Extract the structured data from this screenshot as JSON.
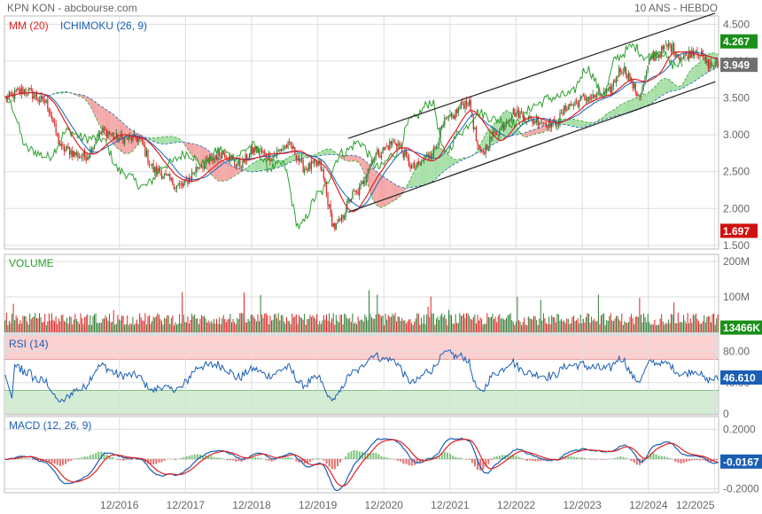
{
  "header": {
    "left": "KPN KON - abcbourse.com",
    "right": "10 ANS - HEBDO"
  },
  "colors": {
    "grid": "#dddddd",
    "axis": "#bbbbbb",
    "up": "#2e7d32",
    "down": "#e02020",
    "ma": "#e02020",
    "ichimoku": "#1a5fb4",
    "chikou": "#2ca02c",
    "cloudBull": "#a6dfa6",
    "cloudBear": "#f4a6a6",
    "badgeGreen": "#1a8f1a",
    "badgeGray": "#707070",
    "badgeRed": "#d01010",
    "badgeBlue": "#1a5fb4",
    "rsiHigh": "#fbd0d0",
    "rsiLow": "#d3ecd3",
    "macdSignal": "#e02020"
  },
  "chart_data": [
    {
      "type": "candlestick",
      "panel": "price",
      "legend": [
        {
          "name": "MM (20)",
          "color": "#e02020"
        },
        {
          "name": "ICHIMOKU (26, 9)",
          "color": "#1a5fb4"
        }
      ],
      "x_ticks": [
        "12/2016",
        "12/2017",
        "12/2018",
        "12/2019",
        "12/2020",
        "12/2021",
        "12/2022",
        "12/2023",
        "12/2024",
        "12/2025"
      ],
      "y_ticks": [
        "4.500",
        "4.000",
        "3.500",
        "3.000",
        "2.500",
        "2.000",
        "1.500"
      ],
      "ylim": [
        1.5,
        4.5
      ],
      "anchors": [
        {
          "x": 2015.2,
          "y": 3.5
        },
        {
          "x": 2015.5,
          "y": 3.6
        },
        {
          "x": 2015.8,
          "y": 3.45
        },
        {
          "x": 2016.1,
          "y": 2.8
        },
        {
          "x": 2016.4,
          "y": 2.7
        },
        {
          "x": 2016.7,
          "y": 3.05
        },
        {
          "x": 2016.95,
          "y": 2.95
        },
        {
          "x": 2017.2,
          "y": 2.95
        },
        {
          "x": 2017.5,
          "y": 2.5
        },
        {
          "x": 2017.85,
          "y": 2.3
        },
        {
          "x": 2018.2,
          "y": 2.6
        },
        {
          "x": 2018.5,
          "y": 2.75
        },
        {
          "x": 2018.75,
          "y": 2.6
        },
        {
          "x": 2019.0,
          "y": 2.8
        },
        {
          "x": 2019.2,
          "y": 2.7
        },
        {
          "x": 2019.5,
          "y": 2.85
        },
        {
          "x": 2019.75,
          "y": 2.55
        },
        {
          "x": 2019.95,
          "y": 2.6
        },
        {
          "x": 2020.2,
          "y": 1.75
        },
        {
          "x": 2020.5,
          "y": 2.2
        },
        {
          "x": 2020.85,
          "y": 2.75
        },
        {
          "x": 2021.1,
          "y": 2.9
        },
        {
          "x": 2021.4,
          "y": 2.55
        },
        {
          "x": 2021.65,
          "y": 2.75
        },
        {
          "x": 2021.9,
          "y": 3.2
        },
        {
          "x": 2022.2,
          "y": 3.45
        },
        {
          "x": 2022.4,
          "y": 2.75
        },
        {
          "x": 2022.65,
          "y": 3.05
        },
        {
          "x": 2022.9,
          "y": 3.3
        },
        {
          "x": 2023.2,
          "y": 3.2
        },
        {
          "x": 2023.5,
          "y": 3.15
        },
        {
          "x": 2023.75,
          "y": 3.4
        },
        {
          "x": 2024.0,
          "y": 3.5
        },
        {
          "x": 2024.3,
          "y": 3.55
        },
        {
          "x": 2024.55,
          "y": 3.9
        },
        {
          "x": 2024.8,
          "y": 3.55
        },
        {
          "x": 2025.0,
          "y": 4.05
        },
        {
          "x": 2025.25,
          "y": 4.2
        },
        {
          "x": 2025.45,
          "y": 4.05
        },
        {
          "x": 2025.65,
          "y": 4.15
        },
        {
          "x": 2025.85,
          "y": 3.95
        },
        {
          "x": 2026.0,
          "y": 3.95
        }
      ],
      "trendlines": [
        {
          "from": [
            2020.4,
            2.95
          ],
          "to": [
            2025.95,
            4.65
          ]
        },
        {
          "from": [
            2020.4,
            1.95
          ],
          "to": [
            2025.95,
            3.72
          ]
        }
      ],
      "badges": [
        {
          "text": "4.267",
          "value": 4.267,
          "color": "#1a8f1a"
        },
        {
          "text": "3.949",
          "value": 3.949,
          "color": "#707070"
        },
        {
          "text": "1.697",
          "value": 1.697,
          "color": "#d01010"
        }
      ]
    },
    {
      "type": "bar",
      "panel": "volume",
      "title": "VOLUME",
      "y_ticks": [
        "200M",
        "100M"
      ],
      "ylim": [
        0,
        220
      ],
      "badge": {
        "text": "13466K",
        "value": 13.466,
        "color": "#1a8f1a"
      }
    },
    {
      "type": "line",
      "panel": "rsi",
      "title": "RSI (14)",
      "y_ticks": [
        "80.00",
        "40.00",
        "0"
      ],
      "ylim": [
        0,
        100
      ],
      "bands": {
        "high": [
          70,
          100
        ],
        "low": [
          0,
          30
        ]
      },
      "badge": {
        "text": "46.610",
        "value": 46.61,
        "color": "#1a5fb4"
      }
    },
    {
      "type": "line",
      "panel": "macd",
      "title": "MACD (12, 26, 9)",
      "y_ticks": [
        "0.2000",
        "-0.2000"
      ],
      "ylim": [
        -0.22,
        0.22
      ],
      "badge": {
        "text": "-0.0167",
        "value": -0.0167,
        "color": "#1a5fb4"
      }
    }
  ]
}
